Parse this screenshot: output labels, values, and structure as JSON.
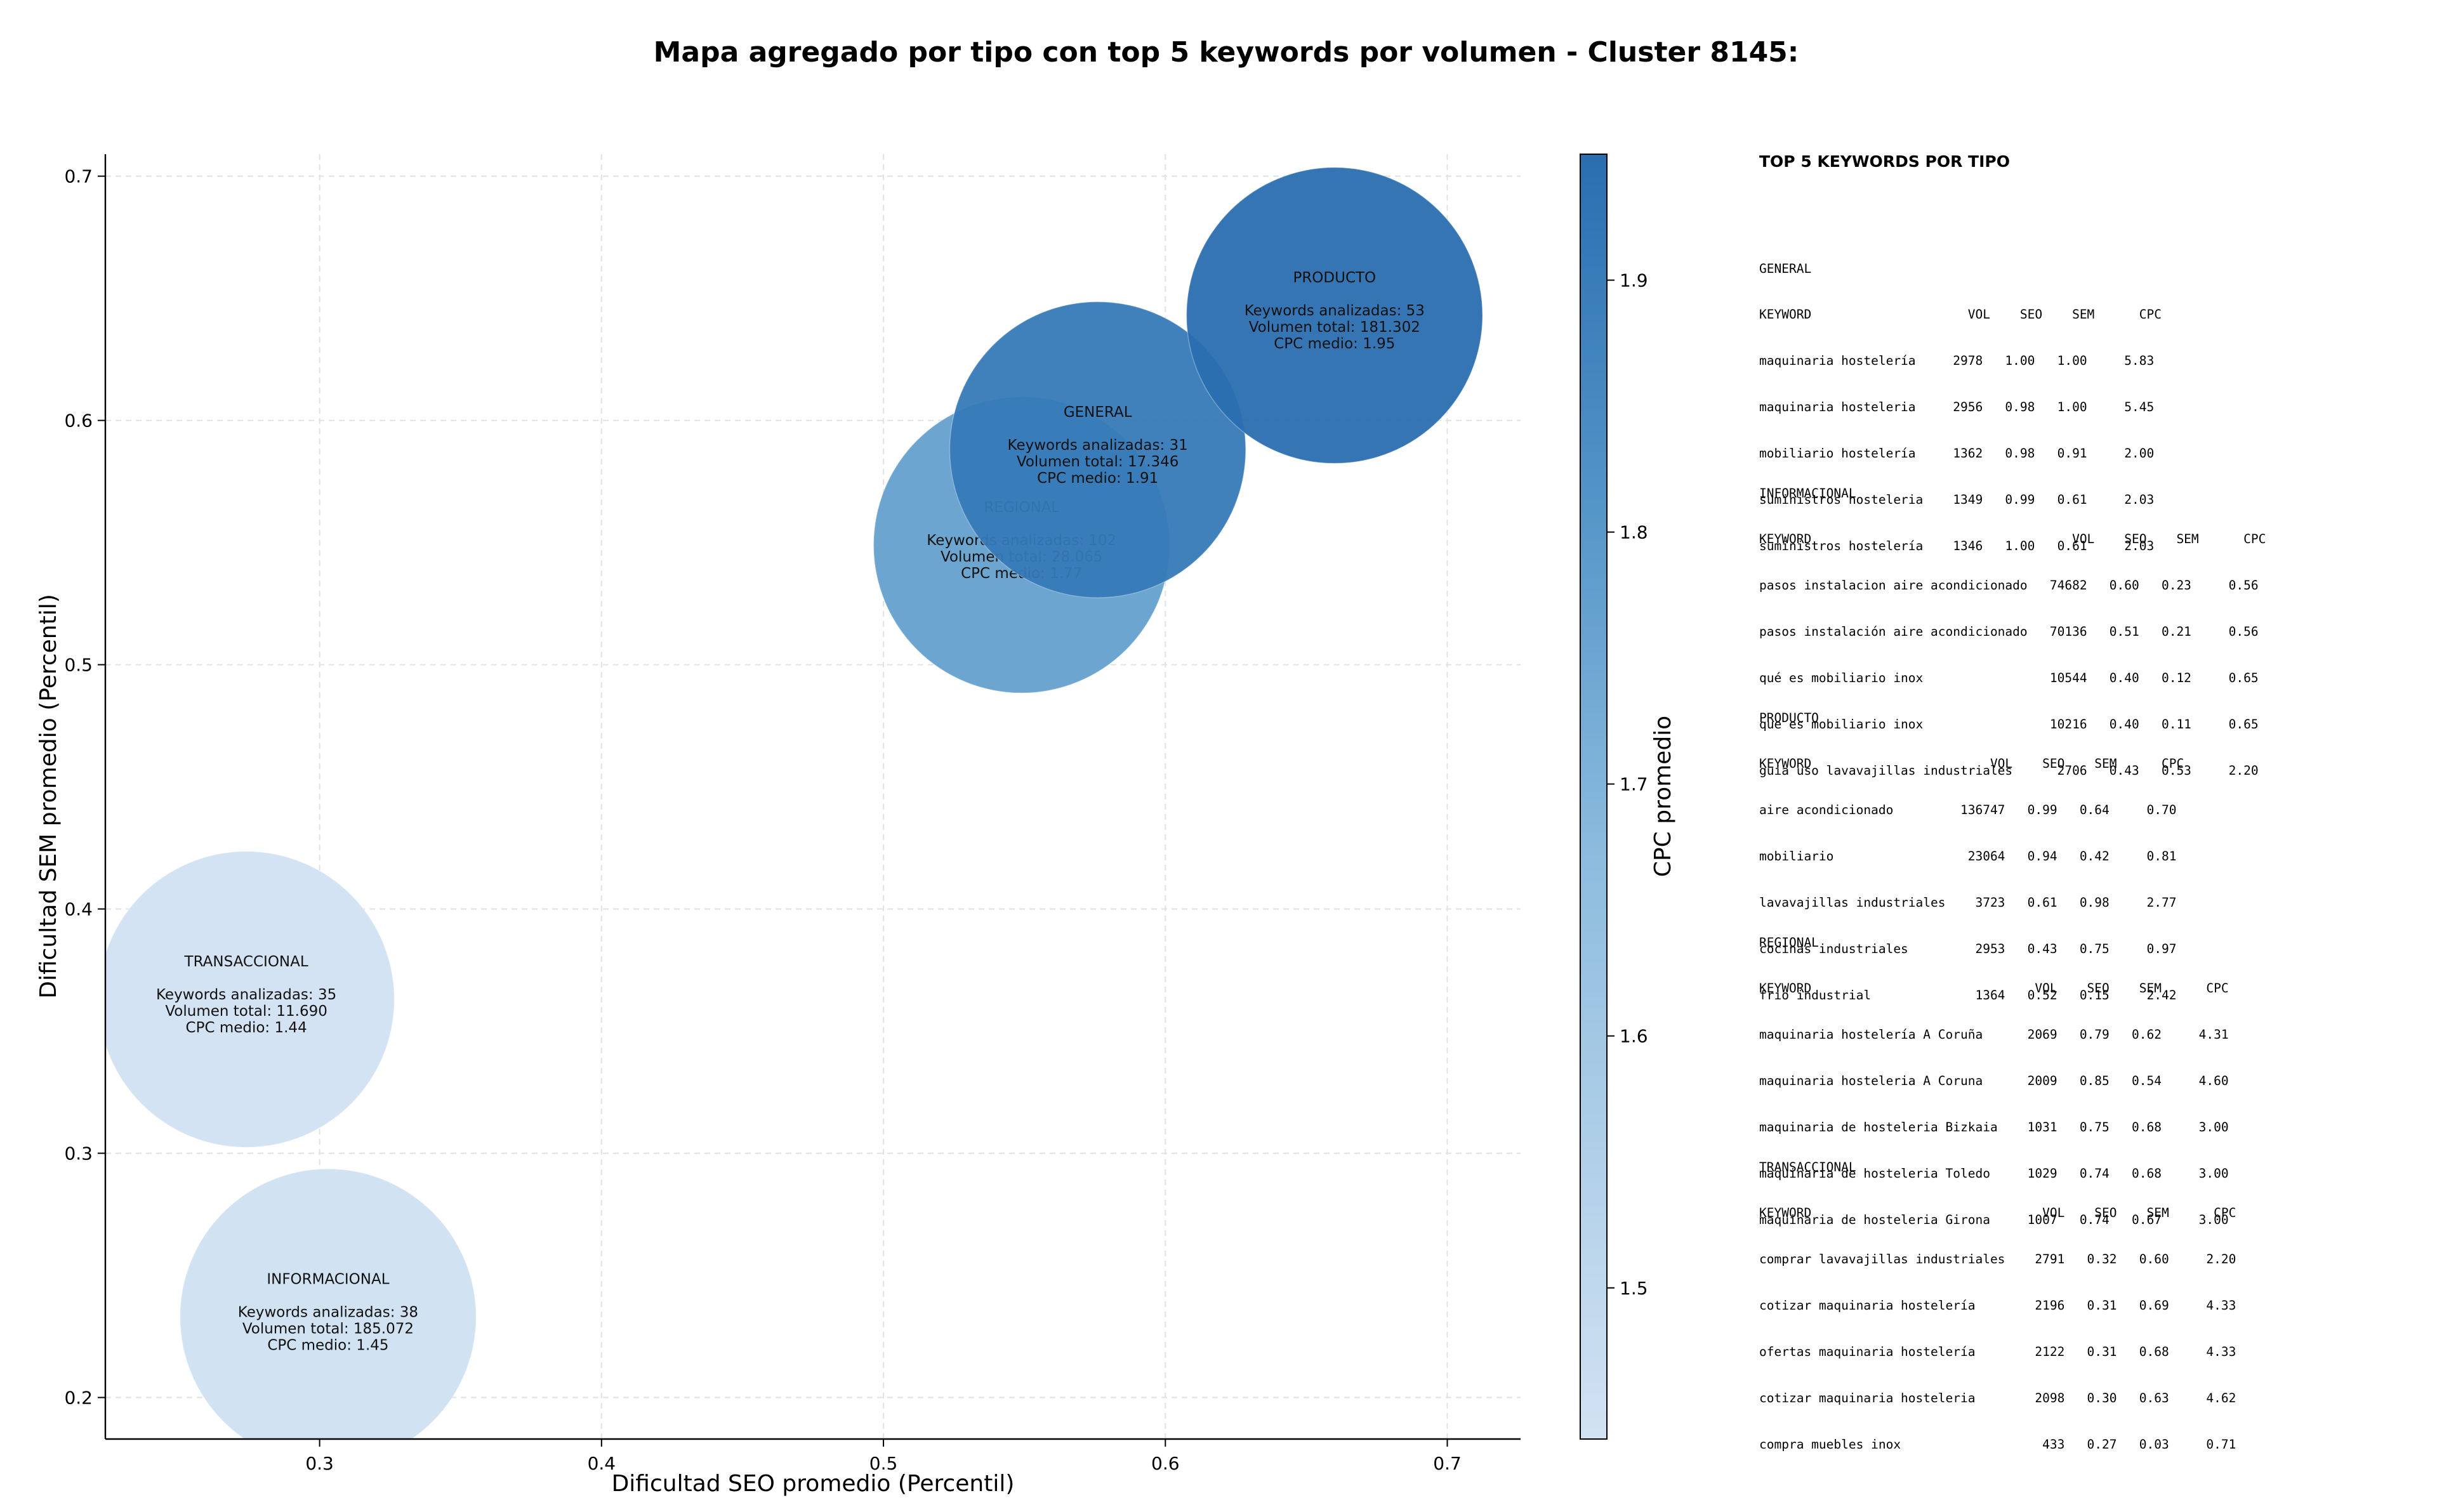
{
  "chart_data": {
    "type": "scatter",
    "title": "Mapa agregado por tipo con top 5 keywords por volumen - Cluster 8145:",
    "xlabel": "Dificultad SEO promedio (Percentil)",
    "ylabel": "Dificultad SEM promedio (Percentil)",
    "xlim": [
      0.224,
      0.726
    ],
    "ylim": [
      0.183,
      0.709
    ],
    "xticks": [
      "0.3",
      "0.4",
      "0.5",
      "0.6",
      "0.7"
    ],
    "yticks": [
      "0.2",
      "0.3",
      "0.4",
      "0.5",
      "0.6",
      "0.7"
    ],
    "grid": true,
    "colorbar": {
      "label": "CPC promedio",
      "min": 1.44,
      "max": 1.95,
      "ticks": [
        "1.5",
        "1.6",
        "1.7",
        "1.8",
        "1.9"
      ]
    },
    "bubbles": [
      {
        "name": "INFORMACIONAL",
        "x": 0.303,
        "y": 0.233,
        "keywords": 38,
        "volume": 185072,
        "cpc": 1.45,
        "lines": [
          "INFORMACIONAL",
          "",
          "Keywords analizadas: 38",
          "Volumen total: 185.072",
          "CPC medio: 1.45"
        ]
      },
      {
        "name": "TRANSACCIONAL",
        "x": 0.274,
        "y": 0.363,
        "keywords": 35,
        "volume": 11690,
        "cpc": 1.44,
        "lines": [
          "TRANSACCIONAL",
          "",
          "Keywords analizadas: 35",
          "Volumen total: 11.690",
          "CPC medio: 1.44"
        ]
      },
      {
        "name": "REGIONAL",
        "x": 0.549,
        "y": 0.549,
        "keywords": 102,
        "volume": 28065,
        "cpc": 1.77,
        "lines": [
          "REGIONAL",
          "",
          "Keywords analizadas: 102",
          "Volumen total: 28.065",
          "CPC medio: 1.77"
        ]
      },
      {
        "name": "GENERAL",
        "x": 0.576,
        "y": 0.588,
        "keywords": 31,
        "volume": 17346,
        "cpc": 1.91,
        "lines": [
          "GENERAL",
          "",
          "Keywords analizadas: 31",
          "Volumen total: 17.346",
          "CPC medio: 1.91"
        ]
      },
      {
        "name": "PRODUCTO",
        "x": 0.66,
        "y": 0.643,
        "keywords": 53,
        "volume": 181302,
        "cpc": 1.95,
        "lines": [
          "PRODUCTO",
          "",
          "Keywords analizadas: 53",
          "Volumen total: 181.302",
          "CPC medio: 1.95"
        ]
      }
    ],
    "colors": {
      "low": "#cfe0f1",
      "high": "#2a6fb0"
    }
  },
  "panel": {
    "title": "TOP 5 KEYWORDS POR TIPO",
    "groups": [
      {
        "lines": [
          "GENERAL",
          "KEYWORD                     VOL    SEO    SEM      CPC",
          "maquinaria hostelería     2978   1.00   1.00     5.83",
          "maquinaria hosteleria     2956   0.98   1.00     5.45",
          "mobiliario hostelería     1362   0.98   0.91     2.00",
          "suministros hosteleria    1349   0.99   0.61     2.03",
          "suministros hostelería    1346   1.00   0.61     2.03"
        ]
      },
      {
        "lines": [
          "INFORMACIONAL",
          "KEYWORD                                   VOL    SEO    SEM      CPC",
          "pasos instalacion aire acondicionado   74682   0.60   0.23     0.56",
          "pasos instalación aire acondicionado   70136   0.51   0.21     0.56",
          "qué es mobiliario inox                 10544   0.40   0.12     0.65",
          "que es mobiliario inox                 10216   0.40   0.11     0.65",
          "guia uso lavavajillas industriales      2706   0.43   0.53     2.20"
        ]
      },
      {
        "lines": [
          "PRODUCTO",
          "KEYWORD                        VOL    SEO    SEM      CPC",
          "aire acondicionado         136747   0.99   0.64     0.70",
          "mobiliario                  23064   0.94   0.42     0.81",
          "lavavajillas industriales    3723   0.61   0.98     2.77",
          "cocinas industriales         2953   0.43   0.75     0.97",
          "frio industrial              1364   0.52   0.15     2.42"
        ]
      },
      {
        "lines": [
          "REGIONAL",
          "KEYWORD                              VOL    SEO    SEM      CPC",
          "maquinaria hostelería A Coruña      2069   0.79   0.62     4.31",
          "maquinaria hosteleria A Coruna      2009   0.85   0.54     4.60",
          "maquinaria de hosteleria Bizkaia    1031   0.75   0.68     3.00",
          "maquinaria de hosteleria Toledo     1029   0.74   0.68     3.00",
          "maquinaria de hosteleria Girona     1007   0.74   0.67     3.00"
        ]
      },
      {
        "lines": [
          "TRANSACCIONAL",
          "KEYWORD                               VOL    SEO    SEM      CPC",
          "comprar lavavajillas industriales    2791   0.32   0.60     2.20",
          "cotizar maquinaria hostelería        2196   0.31   0.69     4.33",
          "ofertas maquinaria hostelería        2122   0.31   0.68     4.33",
          "cotizar maquinaria hosteleria        2098   0.30   0.63     4.62",
          "compra muebles inox                   433   0.27   0.03     0.71"
        ]
      }
    ]
  }
}
